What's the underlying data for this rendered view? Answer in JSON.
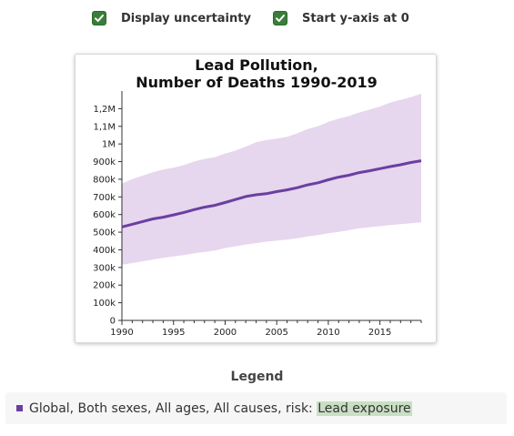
{
  "controls": {
    "uncertainty_label": "Display uncertainty",
    "uncertainty_checked": true,
    "yzero_label": "Start y-axis at 0",
    "yzero_checked": true
  },
  "colors": {
    "checkbox": "#3a7d3a",
    "line": "#6a3fa0",
    "band": "#e6d6ee",
    "highlight": "#c9dfc3"
  },
  "chart_data": {
    "type": "line",
    "title": [
      "Lead Pollution,",
      "Number of Deaths 1990-2019"
    ],
    "xlabel": "",
    "ylabel": "",
    "xlim": [
      1990,
      2019
    ],
    "ylim": [
      0,
      1300000
    ],
    "x_ticks": [
      1990,
      1995,
      2000,
      2005,
      2010,
      2015
    ],
    "y_ticks": [
      {
        "v": 0,
        "label": "0"
      },
      {
        "v": 100000,
        "label": "100k"
      },
      {
        "v": 200000,
        "label": "200k"
      },
      {
        "v": 300000,
        "label": "300k"
      },
      {
        "v": 400000,
        "label": "400k"
      },
      {
        "v": 500000,
        "label": "500k"
      },
      {
        "v": 600000,
        "label": "600k"
      },
      {
        "v": 700000,
        "label": "700k"
      },
      {
        "v": 800000,
        "label": "800k"
      },
      {
        "v": 900000,
        "label": "900k"
      },
      {
        "v": 1000000,
        "label": "1M"
      },
      {
        "v": 1100000,
        "label": "1,1M"
      },
      {
        "v": 1200000,
        "label": "1,2M"
      }
    ],
    "grid": false,
    "x": [
      1990,
      1991,
      1992,
      1993,
      1994,
      1995,
      1996,
      1997,
      1998,
      1999,
      2000,
      2001,
      2002,
      2003,
      2004,
      2005,
      2006,
      2007,
      2008,
      2009,
      2010,
      2011,
      2012,
      2013,
      2014,
      2015,
      2016,
      2017,
      2018,
      2019
    ],
    "series": [
      {
        "name": "Global, Both sexes, All ages, All causes, risk: Lead exposure",
        "values": [
          530000,
          545000,
          560000,
          575000,
          585000,
          598000,
          612000,
          628000,
          642000,
          652000,
          668000,
          685000,
          702000,
          712000,
          718000,
          730000,
          740000,
          752000,
          768000,
          780000,
          797000,
          812000,
          823000,
          838000,
          848000,
          860000,
          872000,
          882000,
          895000,
          905000
        ],
        "upper": [
          775000,
          800000,
          820000,
          840000,
          855000,
          865000,
          880000,
          900000,
          915000,
          925000,
          945000,
          962000,
          985000,
          1010000,
          1022000,
          1030000,
          1040000,
          1060000,
          1085000,
          1100000,
          1125000,
          1143000,
          1158000,
          1178000,
          1195000,
          1212000,
          1235000,
          1250000,
          1265000,
          1285000
        ],
        "lower": [
          315000,
          325000,
          335000,
          345000,
          355000,
          362000,
          370000,
          380000,
          388000,
          396000,
          410000,
          420000,
          430000,
          438000,
          446000,
          452000,
          458000,
          466000,
          476000,
          484000,
          494000,
          502000,
          512000,
          522000,
          528000,
          534000,
          540000,
          546000,
          551000,
          556000
        ]
      }
    ]
  },
  "legend": {
    "title": "Legend",
    "item_text": "Global, Both sexes, All ages, All causes, risk: ",
    "item_highlight": "Lead exposure"
  }
}
